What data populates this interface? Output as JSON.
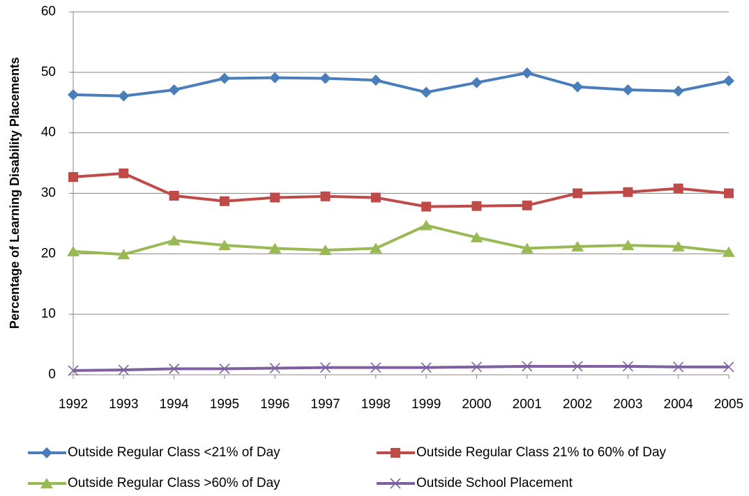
{
  "chart_data": {
    "type": "line",
    "y_label": "Percentage of Learning Disability Placements",
    "categories": [
      "1992",
      "1993",
      "1994",
      "1995",
      "1996",
      "1997",
      "1998",
      "1999",
      "2000",
      "2001",
      "2002",
      "2003",
      "2004",
      "2005"
    ],
    "series": [
      {
        "name": "Outside Regular Class <21% of Day",
        "color": "#4a7ebb",
        "marker": "diamond",
        "values": [
          46.3,
          46.1,
          47.1,
          49.0,
          49.1,
          49.0,
          48.7,
          46.7,
          48.3,
          49.9,
          47.6,
          47.1,
          46.9,
          48.6
        ]
      },
      {
        "name": "Outside Regular Class 21% to 60% of Day",
        "color": "#be4b48",
        "marker": "square",
        "values": [
          32.7,
          33.3,
          29.6,
          28.7,
          29.3,
          29.5,
          29.3,
          27.8,
          27.9,
          28.0,
          30.0,
          30.2,
          30.8,
          30.0
        ]
      },
      {
        "name": "Outside Regular Class >60% of Day",
        "color": "#98b954",
        "marker": "triangle",
        "values": [
          20.4,
          19.9,
          22.2,
          21.4,
          20.9,
          20.6,
          20.9,
          24.7,
          22.7,
          20.9,
          21.2,
          21.4,
          21.2,
          20.3
        ]
      },
      {
        "name": "Outside School Placement",
        "color": "#7d60a0",
        "marker": "x",
        "values": [
          0.7,
          0.8,
          1.0,
          1.0,
          1.1,
          1.2,
          1.2,
          1.2,
          1.3,
          1.4,
          1.4,
          1.4,
          1.3,
          1.3
        ]
      }
    ],
    "ylim": [
      0,
      60
    ],
    "yticks": [
      0,
      10,
      20,
      30,
      40,
      50,
      60
    ],
    "grid": true
  }
}
